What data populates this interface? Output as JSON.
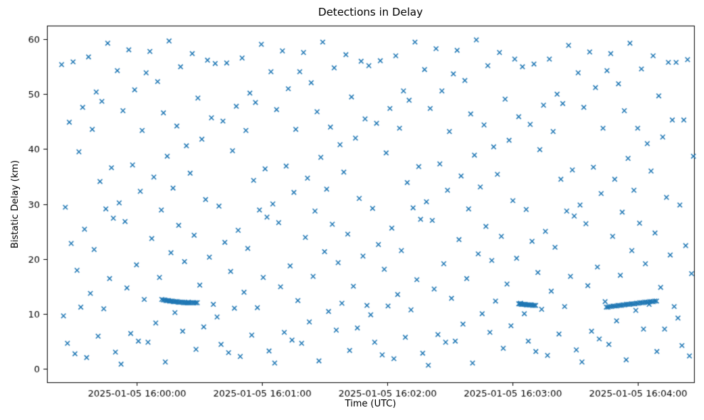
{
  "figure": {
    "title": "Detections in Delay",
    "xlabel": "Time (UTC)",
    "ylabel": "Bistatic Delay (km)"
  },
  "chart_data": {
    "type": "scatter",
    "title": "Detections in Delay",
    "xlabel": "Time (UTC)",
    "ylabel": "Bistatic Delay (km)",
    "marker": "x",
    "color": "#1f77b4",
    "grid": false,
    "legend": "none",
    "x_unit": "seconds relative to 2025-01-05 16:00:00 UTC",
    "xlim": [
      -43,
      267
    ],
    "ylim": [
      -2.5,
      62.5
    ],
    "xticks": [
      {
        "value": 0,
        "label": "2025-01-05 16:00:00"
      },
      {
        "value": 60,
        "label": "2025-01-05 16:01:00"
      },
      {
        "value": 120,
        "label": "2025-01-05 16:02:00"
      },
      {
        "value": 180,
        "label": "2025-01-05 16:03:00"
      },
      {
        "value": 240,
        "label": "2025-01-05 16:04:00"
      }
    ],
    "yticks": [
      0,
      10,
      20,
      30,
      40,
      50,
      60
    ],
    "points": [
      [
        -36,
        55.4
      ],
      [
        -35.1,
        9.6
      ],
      [
        -34.2,
        29.4
      ],
      [
        -33.2,
        4.6
      ],
      [
        -32.3,
        44.9
      ],
      [
        -31.4,
        22.8
      ],
      [
        -30.5,
        55.9
      ],
      [
        -29.6,
        2.7
      ],
      [
        -28.6,
        17.9
      ],
      [
        -27.7,
        39.5
      ],
      [
        -26.8,
        11.2
      ],
      [
        -25.9,
        47.6
      ],
      [
        -25,
        25.4
      ],
      [
        -24,
        2.0
      ],
      [
        -23.1,
        56.8
      ],
      [
        -22.2,
        13.7
      ],
      [
        -21.3,
        43.6
      ],
      [
        -20.4,
        21.7
      ],
      [
        -19.4,
        50.4
      ],
      [
        -18.5,
        5.9
      ],
      [
        -17.6,
        34.1
      ],
      [
        -16.7,
        48.7
      ],
      [
        -15.8,
        10.9
      ],
      [
        -14.8,
        29.1
      ],
      [
        -13.9,
        59.3
      ],
      [
        -13,
        16.4
      ],
      [
        -12.1,
        36.6
      ],
      [
        -11.2,
        27.4
      ],
      [
        -10.2,
        3.0
      ],
      [
        -9.3,
        54.3
      ],
      [
        -8.4,
        30.2
      ],
      [
        -7.5,
        0.8
      ],
      [
        -6.6,
        47.0
      ],
      [
        -5.6,
        26.8
      ],
      [
        -4.7,
        14.7
      ],
      [
        -3.8,
        58.1
      ],
      [
        -2.9,
        6.4
      ],
      [
        -2,
        37.1
      ],
      [
        -1,
        50.8
      ],
      [
        -0.1,
        18.9
      ],
      [
        0.8,
        5.0
      ],
      [
        1.7,
        32.3
      ],
      [
        2.6,
        43.4
      ],
      [
        3.6,
        12.6
      ],
      [
        4.5,
        53.9
      ],
      [
        5.4,
        4.8
      ],
      [
        6.3,
        57.8
      ],
      [
        7.2,
        23.7
      ],
      [
        8.2,
        34.9
      ],
      [
        9.1,
        8.3
      ],
      [
        10,
        52.3
      ],
      [
        10.9,
        16.6
      ],
      [
        11.8,
        28.9
      ],
      [
        12.8,
        46.6
      ],
      [
        13.7,
        1.2
      ],
      [
        14.6,
        38.7
      ],
      [
        15.5,
        59.7
      ],
      [
        16.4,
        21.1
      ],
      [
        17.4,
        32.9
      ],
      [
        18.3,
        10.2
      ],
      [
        19.2,
        44.2
      ],
      [
        20.1,
        26.1
      ],
      [
        21,
        55.0
      ],
      [
        22,
        6.8
      ],
      [
        22.9,
        19.5
      ],
      [
        23.8,
        40.6
      ],
      [
        24.7,
        12.1
      ],
      [
        25.6,
        35.6
      ],
      [
        26.6,
        57.4
      ],
      [
        27.5,
        24.3
      ],
      [
        28.4,
        3.5
      ],
      [
        29.3,
        49.3
      ],
      [
        30.2,
        15.2
      ],
      [
        31.2,
        41.8
      ],
      [
        32.1,
        7.6
      ],
      [
        33,
        30.8
      ],
      [
        33.9,
        56.2
      ],
      [
        34.8,
        20.3
      ],
      [
        35.8,
        45.7
      ],
      [
        36.7,
        11.7
      ],
      [
        37.6,
        55.6
      ],
      [
        38.5,
        9.4
      ],
      [
        39.4,
        29.6
      ],
      [
        40.4,
        4.4
      ],
      [
        41.3,
        45.1
      ],
      [
        42.2,
        23.0
      ],
      [
        43.1,
        55.7
      ],
      [
        44,
        2.9
      ],
      [
        45,
        17.7
      ],
      [
        45.9,
        39.7
      ],
      [
        46.8,
        11.0
      ],
      [
        47.7,
        47.8
      ],
      [
        48.6,
        25.2
      ],
      [
        49.6,
        2.2
      ],
      [
        50.5,
        56.6
      ],
      [
        51.4,
        13.9
      ],
      [
        52.3,
        43.4
      ],
      [
        53.2,
        21.9
      ],
      [
        54.2,
        50.2
      ],
      [
        55.1,
        6.1
      ],
      [
        56,
        34.3
      ],
      [
        56.9,
        48.5
      ],
      [
        57.8,
        11.1
      ],
      [
        58.8,
        28.9
      ],
      [
        59.7,
        59.1
      ],
      [
        60.6,
        16.6
      ],
      [
        61.5,
        36.4
      ],
      [
        62.4,
        27.6
      ],
      [
        63.4,
        3.2
      ],
      [
        64.3,
        54.1
      ],
      [
        65.2,
        30.0
      ],
      [
        66.1,
        1.0
      ],
      [
        67,
        47.2
      ],
      [
        68,
        26.6
      ],
      [
        68.9,
        14.9
      ],
      [
        69.8,
        57.9
      ],
      [
        70.7,
        6.6
      ],
      [
        71.6,
        36.9
      ],
      [
        72.6,
        51.0
      ],
      [
        73.5,
        18.7
      ],
      [
        74.4,
        5.2
      ],
      [
        75.3,
        32.1
      ],
      [
        76.2,
        43.6
      ],
      [
        77.2,
        12.4
      ],
      [
        78.1,
        54.1
      ],
      [
        79,
        4.6
      ],
      [
        79.9,
        57.6
      ],
      [
        80.8,
        23.9
      ],
      [
        81.8,
        34.7
      ],
      [
        82.7,
        8.5
      ],
      [
        83.6,
        52.1
      ],
      [
        84.5,
        16.8
      ],
      [
        85.4,
        28.7
      ],
      [
        86.4,
        46.8
      ],
      [
        87.3,
        1.4
      ],
      [
        88.2,
        38.5
      ],
      [
        89.1,
        59.5
      ],
      [
        90,
        21.3
      ],
      [
        91,
        32.7
      ],
      [
        91.9,
        10.4
      ],
      [
        92.8,
        44.0
      ],
      [
        93.7,
        26.3
      ],
      [
        94.6,
        54.8
      ],
      [
        95.6,
        7.0
      ],
      [
        96.5,
        19.3
      ],
      [
        97.4,
        40.8
      ],
      [
        98.3,
        11.9
      ],
      [
        99.2,
        35.8
      ],
      [
        100.2,
        57.2
      ],
      [
        101.1,
        24.5
      ],
      [
        102,
        3.3
      ],
      [
        102.9,
        49.5
      ],
      [
        103.8,
        15.0
      ],
      [
        104.8,
        42.0
      ],
      [
        105.7,
        7.4
      ],
      [
        106.6,
        31.0
      ],
      [
        107.5,
        56.0
      ],
      [
        108.4,
        20.5
      ],
      [
        109.4,
        45.5
      ],
      [
        110.3,
        11.5
      ],
      [
        111.2,
        55.2
      ],
      [
        112.1,
        9.8
      ],
      [
        113,
        29.2
      ],
      [
        114,
        4.8
      ],
      [
        114.9,
        44.7
      ],
      [
        115.8,
        22.6
      ],
      [
        116.7,
        56.1
      ],
      [
        117.6,
        2.5
      ],
      [
        118.6,
        18.1
      ],
      [
        119.5,
        39.3
      ],
      [
        120.4,
        11.4
      ],
      [
        121.3,
        47.4
      ],
      [
        122.2,
        25.6
      ],
      [
        123.2,
        1.8
      ],
      [
        124.1,
        57.0
      ],
      [
        125,
        13.5
      ],
      [
        125.9,
        43.8
      ],
      [
        126.8,
        21.5
      ],
      [
        127.8,
        50.6
      ],
      [
        128.7,
        5.7
      ],
      [
        129.6,
        33.9
      ],
      [
        130.5,
        48.9
      ],
      [
        131.4,
        10.7
      ],
      [
        132.4,
        29.3
      ],
      [
        133.3,
        59.5
      ],
      [
        134.2,
        16.2
      ],
      [
        135.1,
        36.8
      ],
      [
        136,
        27.2
      ],
      [
        137,
        2.8
      ],
      [
        137.9,
        54.5
      ],
      [
        138.8,
        30.4
      ],
      [
        139.7,
        0.6
      ],
      [
        140.6,
        47.4
      ],
      [
        141.6,
        27.0
      ],
      [
        142.5,
        14.5
      ],
      [
        143.4,
        58.3
      ],
      [
        144.3,
        6.2
      ],
      [
        145.2,
        37.3
      ],
      [
        146.2,
        50.6
      ],
      [
        147.1,
        19.1
      ],
      [
        148,
        4.8
      ],
      [
        148.9,
        32.5
      ],
      [
        149.8,
        43.2
      ],
      [
        150.8,
        12.8
      ],
      [
        151.7,
        53.7
      ],
      [
        152.6,
        5.0
      ],
      [
        153.5,
        58.0
      ],
      [
        154.4,
        23.5
      ],
      [
        155.4,
        35.1
      ],
      [
        156.3,
        8.1
      ],
      [
        157.2,
        52.5
      ],
      [
        158.1,
        16.4
      ],
      [
        159,
        29.1
      ],
      [
        160,
        46.4
      ],
      [
        160.9,
        1.0
      ],
      [
        161.8,
        38.9
      ],
      [
        162.7,
        59.9
      ],
      [
        163.6,
        20.9
      ],
      [
        164.6,
        33.1
      ],
      [
        165.5,
        10.0
      ],
      [
        166.4,
        44.4
      ],
      [
        167.3,
        25.9
      ],
      [
        168.2,
        55.2
      ],
      [
        169.2,
        6.6
      ],
      [
        170.1,
        19.7
      ],
      [
        171,
        40.4
      ],
      [
        171.9,
        12.3
      ],
      [
        172.8,
        35.4
      ],
      [
        173.8,
        57.6
      ],
      [
        174.7,
        24.1
      ],
      [
        175.6,
        3.7
      ],
      [
        176.5,
        49.1
      ],
      [
        177.4,
        15.4
      ],
      [
        178.4,
        41.6
      ],
      [
        179.3,
        7.8
      ],
      [
        180.2,
        30.6
      ],
      [
        181.1,
        56.4
      ],
      [
        182,
        20.1
      ],
      [
        183,
        45.9
      ],
      [
        183.9,
        11.9
      ],
      [
        184.8,
        55.0
      ],
      [
        185.7,
        10.0
      ],
      [
        186.6,
        29.0
      ],
      [
        187.6,
        5.0
      ],
      [
        188.5,
        44.5
      ],
      [
        189.4,
        23.2
      ],
      [
        190.3,
        55.5
      ],
      [
        191.2,
        3.1
      ],
      [
        192.2,
        17.5
      ],
      [
        193.1,
        39.9
      ],
      [
        194,
        10.8
      ],
      [
        194.9,
        48.0
      ],
      [
        195.8,
        25.0
      ],
      [
        196.8,
        2.4
      ],
      [
        197.7,
        56.4
      ],
      [
        198.6,
        14.1
      ],
      [
        199.5,
        43.2
      ],
      [
        200.4,
        22.1
      ],
      [
        201.4,
        50.0
      ],
      [
        202.3,
        6.3
      ],
      [
        203.2,
        34.5
      ],
      [
        204.1,
        48.3
      ],
      [
        205,
        11.3
      ],
      [
        206,
        28.7
      ],
      [
        206.9,
        58.9
      ],
      [
        207.8,
        16.8
      ],
      [
        208.7,
        36.2
      ],
      [
        209.6,
        27.8
      ],
      [
        210.6,
        3.4
      ],
      [
        211.5,
        53.9
      ],
      [
        212.4,
        29.8
      ],
      [
        213.3,
        1.2
      ],
      [
        214.2,
        47.6
      ],
      [
        215.2,
        26.4
      ],
      [
        216.1,
        15.1
      ],
      [
        217,
        57.7
      ],
      [
        217.9,
        6.8
      ],
      [
        218.8,
        36.7
      ],
      [
        219.8,
        51.2
      ],
      [
        220.7,
        18.5
      ],
      [
        221.6,
        5.4
      ],
      [
        222.5,
        31.9
      ],
      [
        223.4,
        43.8
      ],
      [
        224.4,
        12.2
      ],
      [
        225.3,
        54.3
      ],
      [
        226.2,
        4.4
      ],
      [
        227.1,
        57.4
      ],
      [
        228,
        24.1
      ],
      [
        229,
        34.5
      ],
      [
        229.9,
        8.7
      ],
      [
        230.8,
        51.9
      ],
      [
        231.7,
        17.0
      ],
      [
        232.6,
        28.5
      ],
      [
        233.6,
        47.0
      ],
      [
        234.5,
        1.6
      ],
      [
        235.4,
        38.3
      ],
      [
        236.3,
        59.3
      ],
      [
        237.2,
        21.5
      ],
      [
        238.2,
        32.5
      ],
      [
        239.1,
        10.6
      ],
      [
        240,
        43.8
      ],
      [
        240.9,
        26.5
      ],
      [
        241.8,
        54.6
      ],
      [
        242.8,
        7.2
      ],
      [
        243.7,
        19.1
      ],
      [
        244.6,
        41.0
      ],
      [
        245.5,
        11.7
      ],
      [
        246.4,
        36.0
      ],
      [
        247.4,
        57.0
      ],
      [
        248.3,
        24.7
      ],
      [
        249.2,
        3.1
      ],
      [
        250.1,
        49.7
      ],
      [
        251,
        14.8
      ],
      [
        252,
        42.2
      ],
      [
        252.9,
        7.2
      ],
      [
        253.8,
        31.2
      ],
      [
        254.7,
        55.8
      ],
      [
        255.6,
        20.7
      ],
      [
        256.6,
        45.3
      ],
      [
        257.5,
        11.3
      ],
      [
        258.4,
        55.8
      ],
      [
        259.3,
        9.2
      ],
      [
        260.2,
        29.8
      ],
      [
        261.2,
        4.2
      ],
      [
        262.1,
        45.3
      ],
      [
        263,
        22.4
      ],
      [
        263.9,
        56.3
      ],
      [
        264.8,
        2.3
      ],
      [
        265.8,
        17.3
      ],
      [
        266.7,
        38.7
      ],
      [
        12,
        12.6
      ],
      [
        12.7,
        12.5
      ],
      [
        13.4,
        12.5
      ],
      [
        14,
        12.4
      ],
      [
        14.6,
        12.4
      ],
      [
        15.2,
        12.4
      ],
      [
        15.8,
        12.3
      ],
      [
        16.4,
        12.3
      ],
      [
        17,
        12.3
      ],
      [
        17.6,
        12.2
      ],
      [
        18.2,
        12.2
      ],
      [
        18.8,
        12.2
      ],
      [
        19.4,
        12.2
      ],
      [
        20,
        12.1
      ],
      [
        20.6,
        12.1
      ],
      [
        21.2,
        12.1
      ],
      [
        21.9,
        12.1
      ],
      [
        22.5,
        12.0
      ],
      [
        23.2,
        12.0
      ],
      [
        23.9,
        12.0
      ],
      [
        24.6,
        12.0
      ],
      [
        25.3,
        12.0
      ],
      [
        26,
        12.0
      ],
      [
        26.8,
        12.0
      ],
      [
        27.5,
        12.0
      ],
      [
        28.3,
        12.0
      ],
      [
        29,
        12.0
      ],
      [
        183,
        11.8
      ],
      [
        183.6,
        11.8
      ],
      [
        184.2,
        11.7
      ],
      [
        184.8,
        11.7
      ],
      [
        185.4,
        11.7
      ],
      [
        186,
        11.7
      ],
      [
        186.6,
        11.6
      ],
      [
        187.2,
        11.6
      ],
      [
        187.8,
        11.6
      ],
      [
        188.4,
        11.6
      ],
      [
        189,
        11.6
      ],
      [
        189.7,
        11.5
      ],
      [
        190.4,
        11.5
      ],
      [
        191.1,
        11.5
      ],
      [
        225,
        11.2
      ],
      [
        225.8,
        11.2
      ],
      [
        226.6,
        11.3
      ],
      [
        227.4,
        11.3
      ],
      [
        228.2,
        11.4
      ],
      [
        229,
        11.4
      ],
      [
        229.8,
        11.4
      ],
      [
        230.6,
        11.5
      ],
      [
        231.4,
        11.5
      ],
      [
        232.2,
        11.5
      ],
      [
        233,
        11.6
      ],
      [
        233.8,
        11.6
      ],
      [
        234.6,
        11.7
      ],
      [
        235.4,
        11.7
      ],
      [
        236.2,
        11.7
      ],
      [
        237,
        11.8
      ],
      [
        237.8,
        11.8
      ],
      [
        238.6,
        11.8
      ],
      [
        239.4,
        11.9
      ],
      [
        240.2,
        11.9
      ],
      [
        241,
        12.0
      ],
      [
        241.8,
        12.0
      ],
      [
        242.6,
        12.0
      ],
      [
        243.4,
        12.1
      ],
      [
        244.2,
        12.1
      ],
      [
        245,
        12.1
      ],
      [
        245.8,
        12.2
      ],
      [
        246.6,
        12.2
      ],
      [
        247.4,
        12.2
      ],
      [
        248.2,
        12.3
      ],
      [
        249,
        12.3
      ]
    ]
  }
}
